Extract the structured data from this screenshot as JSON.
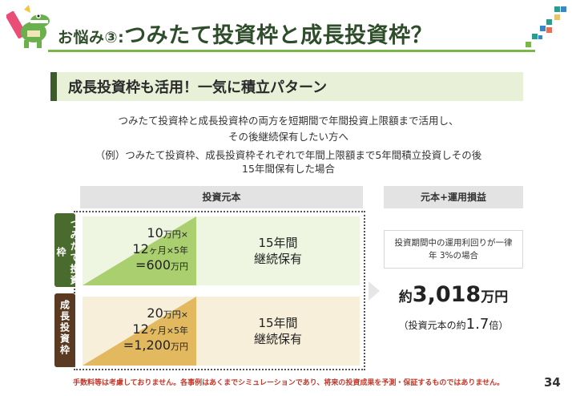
{
  "header": {
    "title_prefix": "お悩み③:",
    "title_main": "つみたて投資枠と成長投資枠？"
  },
  "banner": {
    "text": "成長投資枠も活用！一気に積立パターン"
  },
  "description": {
    "line1": "つみたて投資枠と成長投資枠の両方を短期間で年間投資上限額まで活用し、",
    "line2": "その後継続保有したい方へ",
    "line3": "（例）つみたて投資枠、成長投資枠それぞれで年間上限額まで5年間積立投資しその後",
    "line4": "15年間保有した場合"
  },
  "columns": {
    "principal": "投資元本",
    "result": "元本+運用損益"
  },
  "rows": [
    {
      "label": "つみたて投資枠",
      "calc_amount": "10",
      "calc_amount_unit": "万円×",
      "calc_months": "12",
      "calc_months_unit": "ヶ月×5年",
      "calc_total_prefix": "=600",
      "calc_total_unit": "万円",
      "hold_line1": "15年間",
      "hold_line2": "継続保有",
      "color_label": "#4a6b2e",
      "color_triangle": "#a9cf6e",
      "color_bg": "#eef5e1"
    },
    {
      "label": "成長投資枠",
      "calc_amount": "20",
      "calc_amount_unit": "万円×",
      "calc_months": "12",
      "calc_months_unit": "ヶ月×5年",
      "calc_total_prefix": "=1,200",
      "calc_total_unit": "万円",
      "hold_line1": "15年間",
      "hold_line2": "継続保有",
      "color_label": "#5a3b22",
      "color_triangle": "#e2b95f",
      "color_bg": "#f7efda"
    }
  ],
  "assumption": {
    "line1": "投資期間中の運用利回りが一律",
    "line2": "年 3%の場合"
  },
  "result": {
    "prefix": "約",
    "amount": "3,018",
    "unit": "万円",
    "sub_prefix": "（投資元本の約",
    "sub_multiple": "1.7",
    "sub_suffix": "倍）"
  },
  "footnote": "手数料等は考慮しておりません。各事例はあくまでシミュレーションであり、将来の投資成果を予測・保証するものではありません。",
  "page_number": "34"
}
